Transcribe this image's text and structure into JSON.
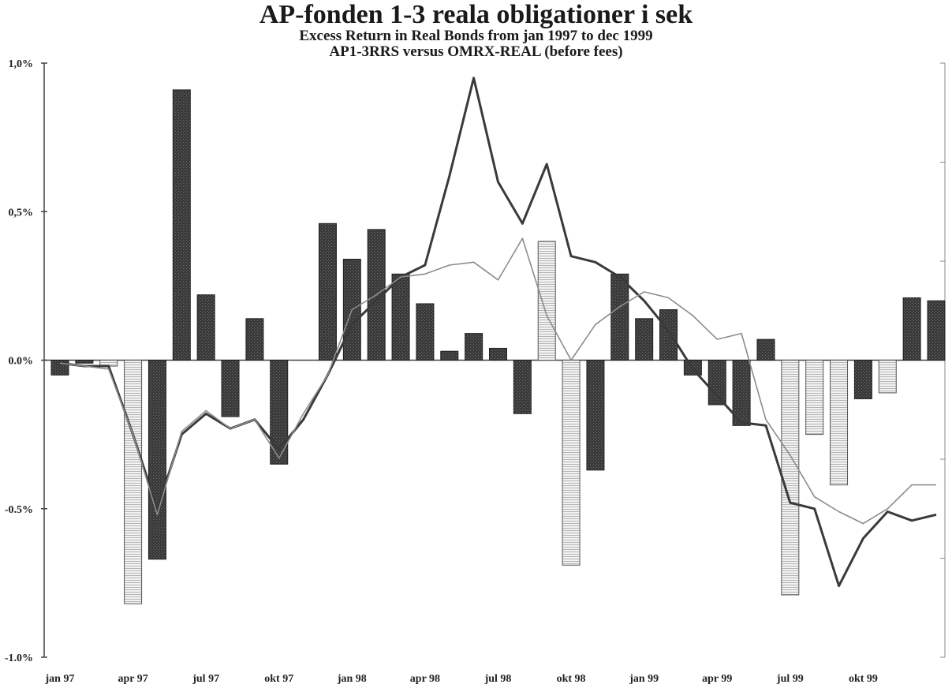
{
  "chart_data": {
    "type": "bar",
    "title": "AP-fonden 1-3 reala obligationer i sek",
    "subtitle": "Excess Return in Real Bonds from jan 1997 to dec 1999",
    "subtitle2": "AP1-3RRS versus OMRX-REAL  (before fees)",
    "ylim": [
      -1.0,
      1.0
    ],
    "y_ticks": [
      "1,0%",
      "0,5%",
      "0.0%",
      "-0.5%",
      "-1.0%"
    ],
    "y_tick_values": [
      1.0,
      0.5,
      0.0,
      -0.5,
      -1.0
    ],
    "x_tick_labels": [
      "jan 97",
      "apr 97",
      "jul 97",
      "okt 97",
      "jan 98",
      "apr 98",
      "jul 98",
      "okt 98",
      "jan 99",
      "apr 99",
      "jul 99",
      "okt 99"
    ],
    "x_tick_months": [
      0,
      3,
      6,
      9,
      12,
      15,
      18,
      21,
      24,
      27,
      30,
      33
    ],
    "grid": false,
    "legend": "none",
    "colors": {
      "dark_bar": "#2e2e2e",
      "light_bar": "#d9d9d9",
      "line_dark": "#3a3a3a",
      "line_light": "#8c8c8c"
    },
    "bars": [
      {
        "month": 0,
        "value": -0.05,
        "style": "dark"
      },
      {
        "month": 1,
        "value": -0.01,
        "style": "dark"
      },
      {
        "month": 2,
        "value": -0.02,
        "style": "light"
      },
      {
        "month": 3,
        "value": -0.82,
        "style": "light"
      },
      {
        "month": 4,
        "value": -0.67,
        "style": "dark"
      },
      {
        "month": 5,
        "value": 0.91,
        "style": "dark"
      },
      {
        "month": 6,
        "value": 0.22,
        "style": "dark"
      },
      {
        "month": 7,
        "value": -0.19,
        "style": "dark"
      },
      {
        "month": 8,
        "value": 0.14,
        "style": "dark"
      },
      {
        "month": 9,
        "value": -0.35,
        "style": "dark"
      },
      {
        "month": 11,
        "value": 0.46,
        "style": "dark"
      },
      {
        "month": 12,
        "value": 0.34,
        "style": "dark"
      },
      {
        "month": 13,
        "value": 0.44,
        "style": "dark"
      },
      {
        "month": 14,
        "value": 0.29,
        "style": "dark"
      },
      {
        "month": 15,
        "value": 0.19,
        "style": "dark"
      },
      {
        "month": 16,
        "value": 0.03,
        "style": "dark"
      },
      {
        "month": 17,
        "value": 0.09,
        "style": "dark"
      },
      {
        "month": 18,
        "value": 0.04,
        "style": "dark"
      },
      {
        "month": 19,
        "value": -0.18,
        "style": "dark"
      },
      {
        "month": 20,
        "value": 0.4,
        "style": "light"
      },
      {
        "month": 21,
        "value": -0.69,
        "style": "light"
      },
      {
        "month": 22,
        "value": -0.37,
        "style": "dark"
      },
      {
        "month": 23,
        "value": 0.29,
        "style": "dark"
      },
      {
        "month": 24,
        "value": 0.14,
        "style": "dark"
      },
      {
        "month": 25,
        "value": 0.17,
        "style": "dark"
      },
      {
        "month": 26,
        "value": -0.05,
        "style": "dark"
      },
      {
        "month": 27,
        "value": -0.15,
        "style": "dark"
      },
      {
        "month": 28,
        "value": -0.22,
        "style": "dark"
      },
      {
        "month": 29,
        "value": 0.07,
        "style": "dark"
      },
      {
        "month": 30,
        "value": -0.79,
        "style": "light"
      },
      {
        "month": 31,
        "value": -0.25,
        "style": "light"
      },
      {
        "month": 32,
        "value": -0.42,
        "style": "light"
      },
      {
        "month": 33,
        "value": -0.13,
        "style": "dark"
      },
      {
        "month": 34,
        "value": -0.11,
        "style": "light"
      },
      {
        "month": 35,
        "value": 0.21,
        "style": "dark"
      },
      {
        "month": 36,
        "value": 0.2,
        "style": "dark"
      }
    ],
    "series": [
      {
        "style": "dark-line",
        "points": [
          [
            0,
            -0.01
          ],
          [
            1,
            -0.02
          ],
          [
            2,
            -0.02
          ],
          [
            3,
            -0.25
          ],
          [
            4,
            -0.5
          ],
          [
            5,
            -0.25
          ],
          [
            6,
            -0.18
          ],
          [
            7,
            -0.23
          ],
          [
            8,
            -0.2
          ],
          [
            9,
            -0.3
          ],
          [
            10,
            -0.2
          ],
          [
            11,
            -0.05
          ],
          [
            12,
            0.12
          ],
          [
            13,
            0.2
          ],
          [
            14,
            0.28
          ],
          [
            15,
            0.32
          ],
          [
            16,
            0.62
          ],
          [
            17,
            0.95
          ],
          [
            18,
            0.6
          ],
          [
            19,
            0.46
          ],
          [
            20,
            0.66
          ],
          [
            21,
            0.35
          ],
          [
            22,
            0.33
          ],
          [
            23,
            0.28
          ],
          [
            24,
            0.2
          ],
          [
            25,
            0.1
          ],
          [
            26,
            -0.03
          ],
          [
            27,
            -0.12
          ],
          [
            28,
            -0.21
          ],
          [
            29,
            -0.22
          ],
          [
            30,
            -0.48
          ],
          [
            31,
            -0.5
          ],
          [
            32,
            -0.76
          ],
          [
            33,
            -0.6
          ],
          [
            34,
            -0.51
          ],
          [
            35,
            -0.54
          ],
          [
            36,
            -0.52
          ]
        ]
      },
      {
        "style": "light-line",
        "points": [
          [
            0,
            -0.01
          ],
          [
            1,
            -0.02
          ],
          [
            2,
            -0.03
          ],
          [
            3,
            -0.25
          ],
          [
            4,
            -0.52
          ],
          [
            5,
            -0.24
          ],
          [
            6,
            -0.17
          ],
          [
            7,
            -0.23
          ],
          [
            8,
            -0.2
          ],
          [
            9,
            -0.33
          ],
          [
            10,
            -0.18
          ],
          [
            11,
            -0.05
          ],
          [
            12,
            0.17
          ],
          [
            13,
            0.22
          ],
          [
            14,
            0.28
          ],
          [
            15,
            0.29
          ],
          [
            16,
            0.32
          ],
          [
            17,
            0.33
          ],
          [
            18,
            0.27
          ],
          [
            19,
            0.41
          ],
          [
            20,
            0.15
          ],
          [
            21,
            0.0
          ],
          [
            22,
            0.12
          ],
          [
            23,
            0.18
          ],
          [
            24,
            0.23
          ],
          [
            25,
            0.21
          ],
          [
            26,
            0.15
          ],
          [
            27,
            0.07
          ],
          [
            28,
            0.09
          ],
          [
            29,
            -0.2
          ],
          [
            30,
            -0.32
          ],
          [
            31,
            -0.46
          ],
          [
            32,
            -0.51
          ],
          [
            33,
            -0.55
          ],
          [
            34,
            -0.5
          ],
          [
            35,
            -0.42
          ],
          [
            36,
            -0.42
          ]
        ]
      }
    ]
  }
}
